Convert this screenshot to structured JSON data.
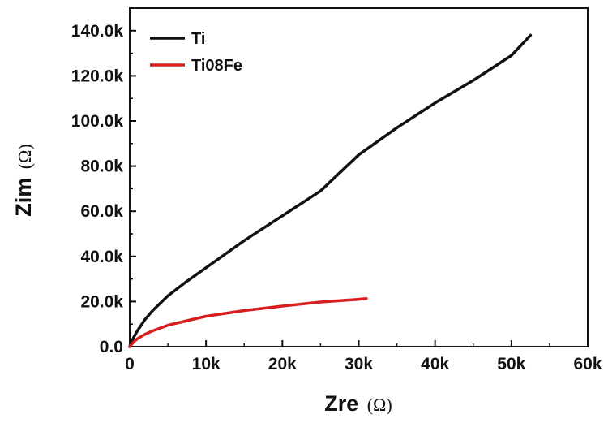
{
  "chart_data": {
    "type": "line",
    "xlabel": "Zre",
    "xlabel_unit": "(Ω)",
    "ylabel": "Zim",
    "ylabel_unit": "(Ω)",
    "xlim": [
      0,
      60000
    ],
    "ylim": [
      0,
      150000
    ],
    "x_ticks": [
      {
        "value": 0,
        "label": "0"
      },
      {
        "value": 10000,
        "label": "10k"
      },
      {
        "value": 20000,
        "label": "20k"
      },
      {
        "value": 30000,
        "label": "30k"
      },
      {
        "value": 40000,
        "label": "40k"
      },
      {
        "value": 50000,
        "label": "50k"
      },
      {
        "value": 60000,
        "label": "60k"
      }
    ],
    "y_ticks": [
      {
        "value": 0,
        "label": "0.0"
      },
      {
        "value": 20000,
        "label": "20.0k"
      },
      {
        "value": 40000,
        "label": "40.0k"
      },
      {
        "value": 60000,
        "label": "60.0k"
      },
      {
        "value": 80000,
        "label": "80.0k"
      },
      {
        "value": 100000,
        "label": "100.0k"
      },
      {
        "value": 120000,
        "label": "120.0k"
      },
      {
        "value": 140000,
        "label": "140.0k"
      }
    ],
    "grid": false,
    "legend_position": "top-left",
    "series": [
      {
        "name": "Ti",
        "color": "#111111",
        "points": [
          [
            0,
            0
          ],
          [
            500,
            4000
          ],
          [
            1000,
            7000
          ],
          [
            2000,
            12000
          ],
          [
            3000,
            16000
          ],
          [
            5000,
            22500
          ],
          [
            7500,
            29000
          ],
          [
            10000,
            35000
          ],
          [
            15000,
            47000
          ],
          [
            20000,
            58000
          ],
          [
            25000,
            69000
          ],
          [
            30000,
            85000
          ],
          [
            35000,
            97000
          ],
          [
            40000,
            108000
          ],
          [
            45000,
            118000
          ],
          [
            50000,
            129000
          ],
          [
            52500,
            138000
          ]
        ]
      },
      {
        "name": "Ti08Fe",
        "color": "#d62020",
        "points": [
          [
            0,
            0
          ],
          [
            500,
            2000
          ],
          [
            1000,
            3500
          ],
          [
            2000,
            5500
          ],
          [
            3000,
            7000
          ],
          [
            5000,
            9500
          ],
          [
            7500,
            11500
          ],
          [
            10000,
            13500
          ],
          [
            15000,
            16000
          ],
          [
            20000,
            18000
          ],
          [
            25000,
            19800
          ],
          [
            30000,
            21000
          ],
          [
            31000,
            21300
          ]
        ]
      }
    ]
  }
}
